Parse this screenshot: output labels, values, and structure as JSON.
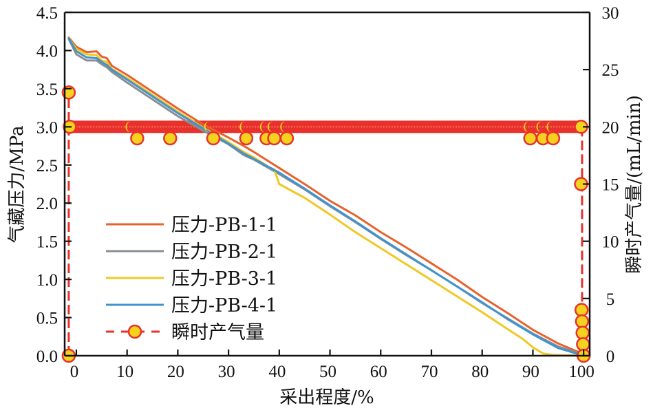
{
  "chart_data": {
    "type": "line",
    "title": "",
    "xlabel": "采出程度/%",
    "ylabel": "气藏压力/MPa",
    "y2label": "瞬时产气量/(mL/min)",
    "xlim": [
      -2.3,
      101.2
    ],
    "ylim": [
      0,
      4.5
    ],
    "y2lim": [
      0,
      30
    ],
    "xticks": [
      0,
      10,
      20,
      30,
      40,
      50,
      60,
      70,
      80,
      90,
      100
    ],
    "xtick_labels": [
      "0",
      "10",
      "20",
      "30",
      "40",
      "50",
      "60",
      "70",
      "80",
      "90",
      "100"
    ],
    "yticks": [
      0,
      0.5,
      1.0,
      1.5,
      2.0,
      2.5,
      3.0,
      3.5,
      4.0,
      4.5
    ],
    "ytick_labels": [
      "0.0",
      "0.5",
      "1.0",
      "1.5",
      "2.0",
      "2.5",
      "3.0",
      "3.5",
      "4.0",
      "4.5"
    ],
    "y2ticks": [
      0,
      5,
      10,
      15,
      20,
      25,
      30
    ],
    "y2tick_labels": [
      "0",
      "5",
      "10",
      "15",
      "20",
      "25",
      "30"
    ],
    "grid": false,
    "legend_position": "lower-left",
    "series": [
      {
        "name": "压力-PB-1-1",
        "axis": "left",
        "color": "#E8612C",
        "style": "solid",
        "x": [
          -1.5,
          0,
          2,
          4,
          5,
          6,
          7,
          10,
          15,
          20,
          25,
          30,
          33,
          35,
          40,
          45,
          50,
          55,
          60,
          65,
          70,
          75,
          80,
          85,
          90,
          95,
          100
        ],
        "y": [
          4.17,
          4.05,
          3.98,
          3.99,
          3.92,
          3.9,
          3.8,
          3.68,
          3.46,
          3.24,
          3.03,
          2.86,
          2.75,
          2.67,
          2.46,
          2.25,
          2.03,
          1.84,
          1.62,
          1.42,
          1.21,
          1.0,
          0.77,
          0.56,
          0.34,
          0.16,
          0.02
        ]
      },
      {
        "name": "压力-PB-2-1",
        "axis": "left",
        "color": "#8A8E93",
        "style": "solid",
        "x": [
          -1.5,
          0,
          2,
          4,
          5,
          6,
          7,
          10,
          15,
          20,
          25,
          30,
          33,
          35,
          40,
          45,
          50,
          55,
          60,
          65,
          70,
          75,
          80,
          85,
          90,
          95,
          100
        ],
        "y": [
          4.15,
          3.95,
          3.87,
          3.87,
          3.82,
          3.78,
          3.72,
          3.58,
          3.36,
          3.14,
          2.95,
          2.77,
          2.63,
          2.57,
          2.38,
          2.18,
          1.96,
          1.75,
          1.53,
          1.32,
          1.12,
          0.91,
          0.69,
          0.49,
          0.29,
          0.12,
          0.01
        ]
      },
      {
        "name": "压力-PB-3-1",
        "axis": "left",
        "color": "#F0C824",
        "style": "solid",
        "x": [
          -1.5,
          0,
          2,
          4,
          5,
          6,
          7,
          10,
          15,
          20,
          25,
          30,
          33,
          35,
          38,
          39,
          40,
          45,
          50,
          55,
          60,
          65,
          70,
          75,
          80,
          85,
          88,
          90,
          92,
          94,
          100
        ],
        "y": [
          4.16,
          4.02,
          3.95,
          3.94,
          3.87,
          3.85,
          3.76,
          3.64,
          3.42,
          3.2,
          2.99,
          2.8,
          2.67,
          2.6,
          2.47,
          2.44,
          2.25,
          2.07,
          1.85,
          1.62,
          1.41,
          1.2,
          0.99,
          0.78,
          0.57,
          0.35,
          0.22,
          0.11,
          0.03,
          0.01,
          0.0
        ]
      },
      {
        "name": "压力-PB-4-1",
        "axis": "left",
        "color": "#3F93CF",
        "style": "solid",
        "x": [
          -1.5,
          0,
          2,
          4,
          5,
          6,
          7,
          10,
          15,
          20,
          25,
          30,
          33,
          35,
          40,
          45,
          50,
          55,
          60,
          65,
          70,
          75,
          80,
          85,
          90,
          95,
          100
        ],
        "y": [
          4.16,
          3.99,
          3.91,
          3.9,
          3.85,
          3.81,
          3.75,
          3.62,
          3.4,
          3.18,
          2.98,
          2.78,
          2.65,
          2.58,
          2.4,
          2.19,
          1.97,
          1.76,
          1.54,
          1.33,
          1.12,
          0.91,
          0.7,
          0.48,
          0.28,
          0.1,
          0.0
        ]
      },
      {
        "name": "瞬时产气量",
        "axis": "right",
        "color": "#E8312C",
        "marker_fill": "#F5D21E",
        "style": "dashed",
        "x": [
          -1.5,
          -1.5,
          -1.3,
          10.5,
          12,
          18.5,
          26,
          27,
          33,
          33.5,
          37,
          37.5,
          38.5,
          39,
          41,
          41.5,
          89,
          89.5,
          91.5,
          92,
          93.5,
          94,
          99.5,
          99.5,
          99.6,
          99.7,
          99.8,
          99.9,
          100
        ],
        "y": [
          0,
          23,
          20,
          20,
          19,
          19,
          20,
          19,
          20,
          19,
          20,
          19,
          20,
          19,
          20,
          19,
          20,
          19,
          20,
          19,
          20,
          19,
          20,
          15,
          4,
          3,
          2,
          1,
          0
        ]
      }
    ]
  }
}
